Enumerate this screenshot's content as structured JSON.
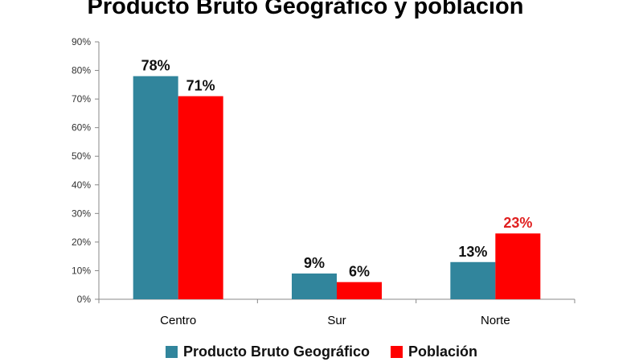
{
  "chart_data": {
    "type": "bar",
    "title": "Producto Bruto Geográfico y población",
    "categories": [
      "Centro",
      "Sur",
      "Norte"
    ],
    "series": [
      {
        "name": "Producto Bruto Geográfico",
        "values": [
          78,
          9,
          13
        ],
        "labels": [
          "78%",
          "9%",
          "13%"
        ],
        "color": "#31859c",
        "label_color": "#111111"
      },
      {
        "name": "Población",
        "values": [
          71,
          6,
          23
        ],
        "labels": [
          "71%",
          "6%",
          "23%"
        ],
        "color": "#ff0000",
        "label_color_default": "#111111",
        "label_colors": [
          "#111111",
          "#111111",
          "#e02020"
        ]
      }
    ],
    "ylim": [
      0,
      90
    ],
    "yticks": [
      "0%",
      "10%",
      "20%",
      "30%",
      "40%",
      "50%",
      "60%",
      "70%",
      "80%",
      "90%"
    ],
    "grid": false,
    "legend": "bottom"
  }
}
